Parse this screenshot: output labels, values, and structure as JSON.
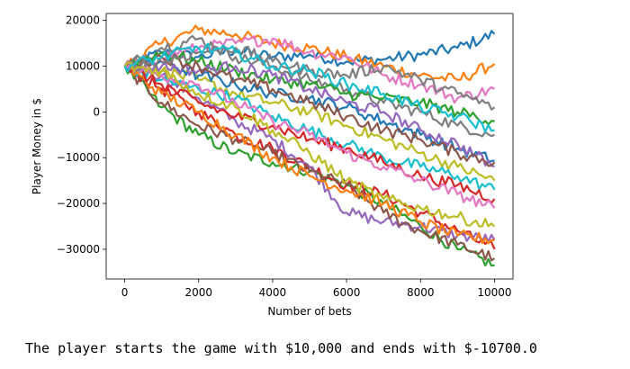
{
  "chart_data": {
    "type": "line",
    "title": "",
    "xlabel": "Number of bets",
    "ylabel": "Player Money in $",
    "xlim": [
      -500,
      10500
    ],
    "ylim": [
      -36500,
      21500
    ],
    "x_ticks": [
      0,
      2000,
      4000,
      6000,
      8000,
      10000
    ],
    "x_tick_labels": [
      "0",
      "2000",
      "4000",
      "6000",
      "8000",
      "10000"
    ],
    "y_ticks": [
      20000,
      10000,
      0,
      -10000,
      -20000,
      -30000
    ],
    "y_tick_labels": [
      "20000",
      "10000",
      "0",
      "−10000",
      "−20000",
      "−30000"
    ],
    "grid": false,
    "start_value": 10000,
    "num_series_approx": 100,
    "series_colors": [
      "#1f77b4",
      "#ff7f0e",
      "#2ca02c",
      "#d62728",
      "#9467bd",
      "#8c564b",
      "#e377c2",
      "#7f7f7f",
      "#bcbd22",
      "#17becf"
    ],
    "series": [
      {
        "x": [
          0,
          1000,
          2000,
          3000,
          4000,
          5000,
          6000,
          7000,
          8000,
          9000,
          10000
        ],
        "y": [
          10000,
          13000,
          12000,
          13500,
          12000,
          12500,
          11000,
          11500,
          12500,
          14000,
          17000
        ]
      },
      {
        "x": [
          0,
          1000,
          2000,
          3000,
          4000,
          5000,
          6000,
          7000,
          8000,
          9000,
          10000
        ],
        "y": [
          10000,
          15000,
          18000,
          17000,
          15000,
          14000,
          12000,
          10000,
          8000,
          7000,
          10500
        ]
      },
      {
        "x": [
          0,
          1000,
          2000,
          3000,
          4000,
          5000,
          6000,
          7000,
          8000,
          9000,
          10000
        ],
        "y": [
          10000,
          1000,
          -5000,
          -9000,
          -11000,
          -13000,
          -16000,
          -20000,
          -25000,
          -30000,
          -33500
        ]
      },
      {
        "x": [
          0,
          1000,
          2000,
          3000,
          4000,
          5000,
          6000,
          7000,
          8000,
          9000,
          10000
        ],
        "y": [
          10000,
          5000,
          0,
          -5000,
          -8000,
          -12000,
          -16000,
          -18000,
          -22000,
          -26000,
          -30000
        ]
      },
      {
        "x": [
          0,
          1000,
          2000,
          3000,
          4000,
          5000,
          6000,
          7000,
          8000,
          9000,
          10000
        ],
        "y": [
          10000,
          8000,
          3000,
          -2000,
          -6000,
          -12000,
          -22000,
          -24000,
          -25000,
          -27000,
          -28000
        ]
      },
      {
        "x": [
          0,
          1000,
          2000,
          3000,
          4000,
          5000,
          6000,
          7000,
          8000,
          9000,
          10000
        ],
        "y": [
          10000,
          2000,
          -3000,
          -6000,
          -9000,
          -13000,
          -16000,
          -22000,
          -26000,
          -29000,
          -32000
        ]
      },
      {
        "x": [
          0,
          1000,
          2000,
          3000,
          4000,
          5000,
          6000,
          7000,
          8000,
          9000,
          10000
        ],
        "y": [
          10000,
          12000,
          14000,
          15000,
          16000,
          13000,
          12000,
          8000,
          6000,
          3000,
          5000
        ]
      },
      {
        "x": [
          0,
          1000,
          2000,
          3000,
          4000,
          5000,
          6000,
          7000,
          8000,
          9000,
          10000
        ],
        "y": [
          10000,
          14000,
          16000,
          12000,
          10000,
          7000,
          5000,
          2000,
          0,
          -3000,
          -5000
        ]
      },
      {
        "x": [
          0,
          1000,
          2000,
          3000,
          4000,
          5000,
          6000,
          7000,
          8000,
          9000,
          10000
        ],
        "y": [
          10000,
          9000,
          7000,
          4000,
          2000,
          0,
          -3000,
          -6000,
          -9000,
          -12000,
          -15000
        ]
      },
      {
        "x": [
          0,
          1000,
          2000,
          3000,
          4000,
          5000,
          6000,
          7000,
          8000,
          9000,
          10000
        ],
        "y": [
          10000,
          7000,
          5000,
          3000,
          -1000,
          -4000,
          -7000,
          -10000,
          -12000,
          -14000,
          -17000
        ]
      },
      {
        "x": [
          0,
          1000,
          2000,
          3000,
          4000,
          5000,
          6000,
          7000,
          8000,
          9000,
          10000
        ],
        "y": [
          10000,
          11000,
          8000,
          6000,
          4000,
          3000,
          1000,
          -2000,
          -5000,
          -8000,
          -10700
        ]
      },
      {
        "x": [
          0,
          1000,
          2000,
          3000,
          4000,
          5000,
          6000,
          7000,
          8000,
          9000,
          10000
        ],
        "y": [
          10000,
          4000,
          0,
          -5000,
          -10000,
          -14000,
          -17000,
          -20000,
          -24000,
          -27000,
          -28000
        ]
      },
      {
        "x": [
          0,
          1000,
          2000,
          3000,
          4000,
          5000,
          6000,
          7000,
          8000,
          9000,
          10000
        ],
        "y": [
          10000,
          13000,
          11000,
          9000,
          7000,
          6000,
          4000,
          3000,
          2000,
          0,
          -2000
        ]
      },
      {
        "x": [
          0,
          1000,
          2000,
          3000,
          4000,
          5000,
          6000,
          7000,
          8000,
          9000,
          10000
        ],
        "y": [
          10000,
          6000,
          2000,
          -1000,
          -3000,
          -6000,
          -8000,
          -11000,
          -14000,
          -16000,
          -19000
        ]
      },
      {
        "x": [
          0,
          1000,
          2000,
          3000,
          4000,
          5000,
          6000,
          7000,
          8000,
          9000,
          10000
        ],
        "y": [
          10000,
          10000,
          9000,
          10000,
          8000,
          5000,
          2000,
          0,
          -4000,
          -7000,
          -12000
        ]
      },
      {
        "x": [
          0,
          1000,
          2000,
          3000,
          4000,
          5000,
          6000,
          7000,
          8000,
          9000,
          10000
        ],
        "y": [
          10000,
          12000,
          10000,
          7000,
          5000,
          2000,
          -1000,
          -4000,
          -6000,
          -9000,
          -11000
        ]
      },
      {
        "x": [
          0,
          1000,
          2000,
          3000,
          4000,
          5000,
          6000,
          7000,
          8000,
          9000,
          10000
        ],
        "y": [
          10000,
          8000,
          6000,
          2000,
          -2000,
          -5000,
          -9000,
          -12000,
          -15000,
          -18000,
          -21000
        ]
      },
      {
        "x": [
          0,
          1000,
          2000,
          3000,
          4000,
          5000,
          6000,
          7000,
          8000,
          9000,
          10000
        ],
        "y": [
          10000,
          11000,
          13000,
          14000,
          11000,
          9000,
          8000,
          10000,
          7000,
          4000,
          1000
        ]
      },
      {
        "x": [
          0,
          1000,
          2000,
          3000,
          4000,
          5000,
          6000,
          7000,
          8000,
          9000,
          10000
        ],
        "y": [
          10000,
          9000,
          4000,
          1000,
          -4000,
          -9000,
          -15000,
          -19000,
          -21000,
          -23000,
          -25000
        ]
      },
      {
        "x": [
          0,
          1000,
          2000,
          3000,
          4000,
          5000,
          6000,
          7000,
          8000,
          9000,
          10000
        ],
        "y": [
          10000,
          12000,
          14000,
          13000,
          10000,
          9000,
          6000,
          4000,
          1000,
          -1000,
          -4000
        ]
      }
    ]
  },
  "caption": "The player starts the game with $10,000 and ends with $-10700.0"
}
